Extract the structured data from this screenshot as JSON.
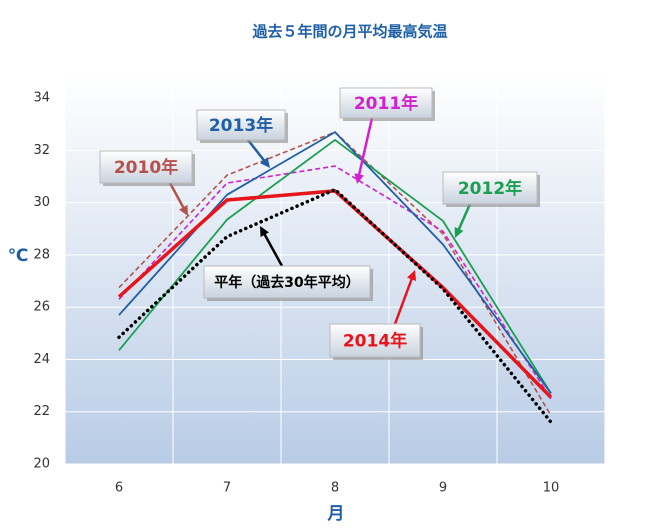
{
  "chart_data": {
    "type": "line",
    "title": "過去５年間の月平均最高気温",
    "x_label": "月",
    "y_label": "℃",
    "x": [
      6,
      7,
      8,
      9,
      10
    ],
    "xlim": [
      5.5,
      10.5
    ],
    "xticks": [
      6,
      7,
      8,
      9,
      10
    ],
    "ylim": [
      20,
      35
    ],
    "yticks": [
      20,
      22,
      24,
      26,
      28,
      30,
      32,
      34
    ],
    "grid": true,
    "series": [
      {
        "name": "2010年",
        "color": "#b5524c",
        "line_style": "dashed",
        "values": [
          26.75,
          31.05,
          32.7,
          28.8,
          21.85
        ]
      },
      {
        "name": "2011年",
        "color": "#d020d0",
        "line_style": "dashed",
        "values": [
          26.3,
          30.75,
          31.4,
          28.9,
          22.5
        ]
      },
      {
        "name": "2012年",
        "color": "#1aa050",
        "line_style": "solid",
        "values": [
          24.35,
          29.35,
          32.4,
          29.3,
          22.7
        ]
      },
      {
        "name": "2013年",
        "color": "#1f5fa8",
        "line_style": "solid",
        "values": [
          25.7,
          30.3,
          32.7,
          28.4,
          22.7
        ]
      },
      {
        "name": "2014年",
        "color": "#e8141b",
        "line_style": "bold",
        "values": [
          26.4,
          30.1,
          30.45,
          26.75,
          22.55
        ]
      },
      {
        "name": "平年（過去30年平均）",
        "color": "#000000",
        "line_style": "dotted",
        "values": [
          24.85,
          28.7,
          30.5,
          26.7,
          21.6
        ]
      }
    ]
  }
}
